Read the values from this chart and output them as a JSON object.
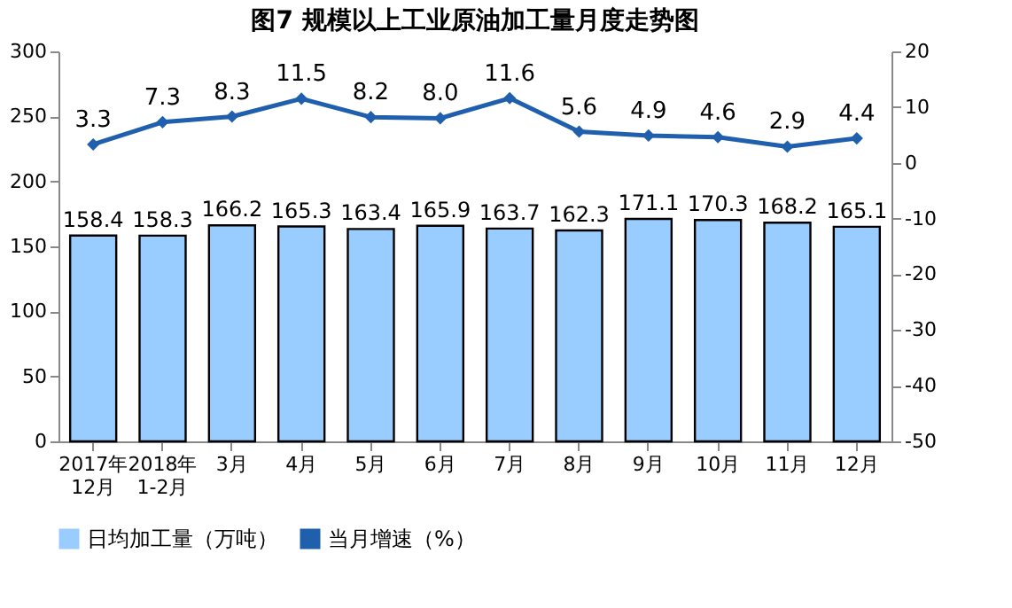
{
  "chart_data": {
    "type": "bar",
    "title": "图7 规模以上工业原油加工量月度走势图",
    "categories": [
      "2017年\n12月",
      "2018年\n1-2月",
      "3月",
      "4月",
      "5月",
      "6月",
      "7月",
      "8月",
      "9月",
      "10月",
      "11月",
      "12月"
    ],
    "series": [
      {
        "name": "日均加工量（万吨）",
        "color": "#99ccff",
        "values": [
          158.4,
          158.3,
          166.2,
          165.3,
          163.4,
          165.9,
          163.7,
          162.3,
          171.1,
          170.3,
          168.2,
          165.1
        ],
        "value_labels": [
          "158.4",
          "158.3",
          "166.2",
          "165.3",
          "163.4",
          "165.9",
          "163.7",
          "162.3",
          "171.1",
          "170.3",
          "168.2",
          "165.1"
        ]
      },
      {
        "name": "当月增速（%）",
        "type": "line",
        "axis": "y2",
        "color": "#1f5fad",
        "marker": "diamond",
        "values": [
          3.3,
          7.3,
          8.3,
          11.5,
          8.2,
          8.0,
          11.6,
          5.6,
          4.9,
          4.6,
          2.9,
          4.4
        ],
        "value_labels": [
          "3.3",
          "7.3",
          "8.3",
          "11.5",
          "8.2",
          "8.0",
          "11.6",
          "5.6",
          "4.9",
          "4.6",
          "2.9",
          "4.4"
        ]
      }
    ],
    "ylim": [
      0,
      300
    ],
    "yticks": [
      0,
      50,
      100,
      150,
      200,
      250,
      300
    ],
    "y2lim": [
      -50,
      20
    ],
    "y2ticks": [
      -50,
      -40,
      -30,
      -20,
      -10,
      0,
      10,
      20
    ],
    "grid": false,
    "legend": "bottom"
  }
}
